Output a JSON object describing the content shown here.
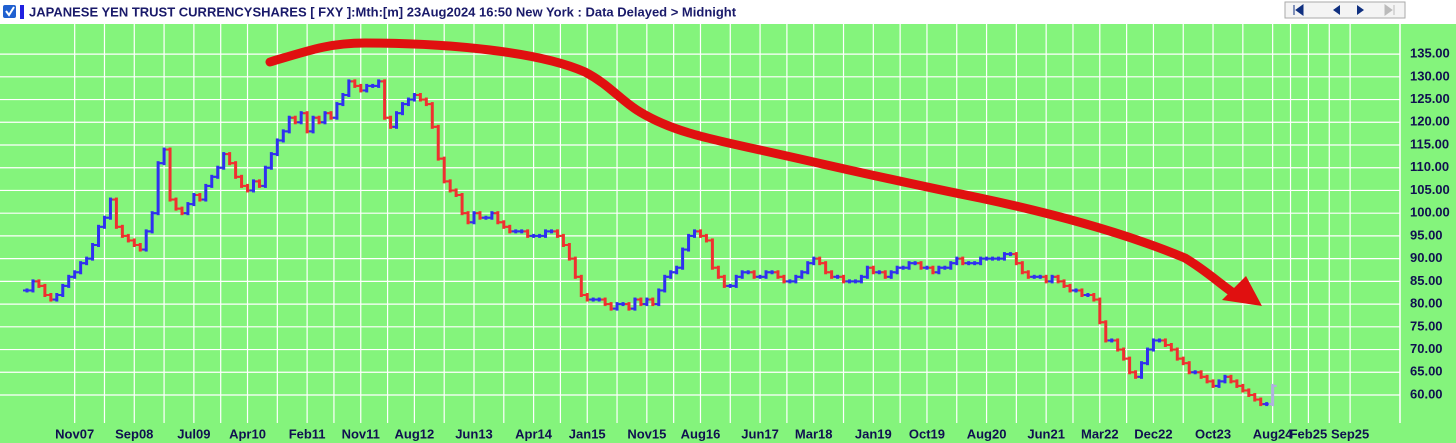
{
  "chart_data": {
    "type": "ohlc",
    "title": "JAPANESE YEN TRUST CURRENCYSHARES [ FXY ]:Mth:[m]  23Aug2024 16:50 New York : Data Delayed > Midnight",
    "categories": [
      "Mar07",
      "Apr07",
      "May07",
      "Jun07",
      "Jul07",
      "Aug07",
      "Sep07",
      "Oct07",
      "Nov07",
      "Dec07",
      "Jan08",
      "Feb08",
      "Mar08",
      "Apr08",
      "May08",
      "Jun08",
      "Jul08",
      "Aug08",
      "Sep08",
      "Oct08",
      "Nov08",
      "Dec08",
      "Jan09",
      "Feb09",
      "Mar09",
      "Apr09",
      "May09",
      "Jun09",
      "Jul09",
      "Aug09",
      "Sep09",
      "Oct09",
      "Nov09",
      "Dec09",
      "Jan10",
      "Feb10",
      "Mar10",
      "Apr10",
      "May10",
      "Jun10",
      "Jul10",
      "Aug10",
      "Sep10",
      "Oct10",
      "Nov10",
      "Dec10",
      "Jan11",
      "Feb11",
      "Mar11",
      "Apr11",
      "May11",
      "Jun11",
      "Jul11",
      "Aug11",
      "Sep11",
      "Oct11",
      "Nov11",
      "Dec11",
      "Jan12",
      "Feb12",
      "Mar12",
      "Apr12",
      "May12",
      "Jun12",
      "Jul12",
      "Aug12",
      "Sep12",
      "Oct12",
      "Nov12",
      "Dec12",
      "Jan13",
      "Feb13",
      "Mar13",
      "Apr13",
      "May13",
      "Jun13",
      "Jul13",
      "Aug13",
      "Sep13",
      "Oct13",
      "Nov13",
      "Dec13",
      "Jan14",
      "Feb14",
      "Mar14",
      "Apr14",
      "May14",
      "Jun14",
      "Jul14",
      "Aug14",
      "Sep14",
      "Oct14",
      "Nov14",
      "Dec14",
      "Jan15",
      "Feb15",
      "Mar15",
      "Apr15",
      "May15",
      "Jun15",
      "Jul15",
      "Aug15",
      "Sep15",
      "Oct15",
      "Nov15",
      "Dec15",
      "Jan16",
      "Feb16",
      "Mar16",
      "Apr16",
      "May16",
      "Jun16",
      "Jul16",
      "Aug16",
      "Sep16",
      "Oct16",
      "Nov16",
      "Dec16",
      "Jan17",
      "Feb17",
      "Mar17",
      "Apr17",
      "May17",
      "Jun17",
      "Jul17",
      "Aug17",
      "Sep17",
      "Oct17",
      "Nov17",
      "Dec17",
      "Jan18",
      "Feb18",
      "Mar18",
      "Apr18",
      "May18",
      "Jun18",
      "Jul18",
      "Aug18",
      "Sep18",
      "Oct18",
      "Nov18",
      "Dec18",
      "Jan19",
      "Feb19",
      "Mar19",
      "Apr19",
      "May19",
      "Jun19",
      "Jul19",
      "Aug19",
      "Sep19",
      "Oct19",
      "Nov19",
      "Dec19",
      "Jan20",
      "Feb20",
      "Mar20",
      "Apr20",
      "May20",
      "Jun20",
      "Jul20",
      "Aug20",
      "Sep20",
      "Oct20",
      "Nov20",
      "Dec20",
      "Jan21",
      "Feb21",
      "Mar21",
      "Apr21",
      "May21",
      "Jun21",
      "Jul21",
      "Aug21",
      "Sep21",
      "Oct21",
      "Nov21",
      "Dec21",
      "Jan22",
      "Feb22",
      "Mar22",
      "Apr22",
      "May22",
      "Jun22",
      "Jul22",
      "Aug22",
      "Sep22",
      "Oct22",
      "Nov22",
      "Dec22",
      "Jan23",
      "Feb23",
      "Mar23",
      "Apr23",
      "May23",
      "Jun23",
      "Jul23",
      "Aug23",
      "Sep23",
      "Oct23",
      "Nov23",
      "Dec23",
      "Jan24",
      "Feb24",
      "Mar24",
      "Apr24",
      "May24",
      "Jun24",
      "Jul24",
      "Aug24"
    ],
    "values": [
      83,
      85,
      84,
      82,
      81,
      82,
      84,
      86,
      87,
      89,
      90,
      93,
      97,
      99,
      103,
      97,
      95,
      94,
      93,
      92,
      96,
      100,
      111,
      114,
      103,
      101,
      100,
      102,
      104,
      103,
      106,
      108,
      110,
      113,
      111,
      108,
      106,
      105,
      107,
      106,
      110,
      113,
      116,
      118,
      121,
      120,
      122,
      118,
      121,
      120,
      122,
      121,
      124,
      126,
      129,
      128,
      127,
      128,
      128,
      129,
      121,
      119,
      122,
      124,
      125,
      126,
      125,
      124,
      119,
      112,
      107,
      105,
      104,
      100,
      98,
      100,
      99,
      99,
      100,
      98,
      97,
      96,
      96,
      96,
      95,
      95,
      95,
      96,
      96,
      95,
      93,
      90,
      86,
      82,
      81,
      81,
      81,
      80,
      79,
      80,
      80,
      79,
      81,
      80,
      81,
      80,
      83,
      86,
      87,
      88,
      92,
      95,
      96,
      95,
      94,
      88,
      86,
      84,
      84,
      86,
      87,
      87,
      86,
      86,
      87,
      87,
      86,
      85,
      85,
      86,
      87,
      89,
      90,
      89,
      87,
      86,
      86,
      85,
      85,
      85,
      86,
      88,
      87,
      87,
      86,
      87,
      88,
      88,
      89,
      89,
      88,
      88,
      87,
      88,
      88,
      89,
      90,
      89,
      89,
      89,
      90,
      90,
      90,
      90,
      91,
      91,
      89,
      87,
      86,
      86,
      86,
      85,
      86,
      85,
      84,
      83,
      83,
      82,
      82,
      81,
      76,
      72,
      72,
      70,
      68,
      65,
      64,
      67,
      70,
      72,
      72,
      71,
      70,
      68,
      67,
      65,
      65,
      64,
      63,
      62,
      63,
      64,
      63,
      62,
      61,
      60,
      59,
      58,
      58,
      62
    ],
    "up_color": "#3030f0",
    "down_color": "#f03030",
    "last_color": "#b0b0e0",
    "xticks": [
      "Nov07",
      "Sep08",
      "Jul09",
      "Apr10",
      "Feb11",
      "Nov11",
      "Aug12",
      "Jun13",
      "Apr14",
      "Jan15",
      "Nov15",
      "Aug16",
      "Jun17",
      "Mar18",
      "Jan19",
      "Oct19",
      "Aug20",
      "Jun21",
      "Mar22",
      "Dec22",
      "Oct23",
      "Aug24",
      "Feb25",
      "Sep25"
    ],
    "ylim": [
      54.5,
      144.7
    ],
    "yticks": [
      {
        "value": 60,
        "label": "60.00"
      },
      {
        "value": 65,
        "label": "65.00"
      },
      {
        "value": 70,
        "label": "70.00"
      },
      {
        "value": 75,
        "label": "75.00"
      },
      {
        "value": 80,
        "label": "80.00"
      },
      {
        "value": 85,
        "label": "85.00"
      },
      {
        "value": 90,
        "label": "90.00"
      },
      {
        "value": 95,
        "label": "95.00"
      },
      {
        "value": 100,
        "label": "100.00"
      },
      {
        "value": 105,
        "label": "105.00"
      },
      {
        "value": 110,
        "label": "110.00"
      },
      {
        "value": 115,
        "label": "115.00"
      },
      {
        "value": 120,
        "label": "120.00"
      },
      {
        "value": 125,
        "label": "125.00"
      },
      {
        "value": 130,
        "label": "130.00"
      },
      {
        "value": 135,
        "label": "135.00"
      }
    ],
    "grid": true
  }
}
